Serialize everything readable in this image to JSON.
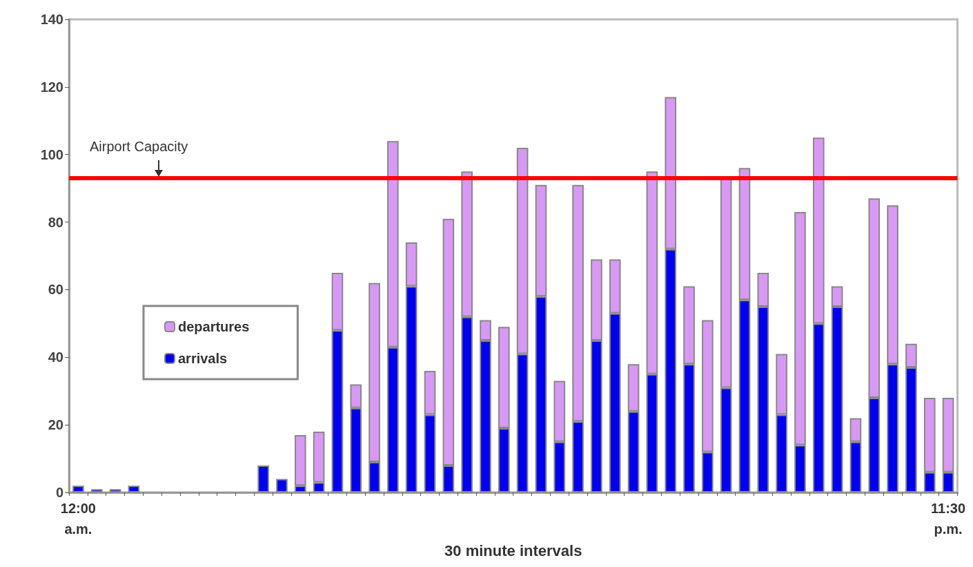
{
  "chart_data": {
    "type": "bar",
    "stacked": true,
    "xlabel": "30 minute intervals",
    "categories": [
      "12:00\na.m.",
      null,
      null,
      null,
      null,
      null,
      null,
      null,
      null,
      null,
      null,
      null,
      null,
      null,
      null,
      null,
      null,
      null,
      null,
      null,
      null,
      null,
      null,
      null,
      null,
      null,
      null,
      null,
      null,
      null,
      null,
      null,
      null,
      null,
      null,
      null,
      null,
      null,
      null,
      null,
      null,
      null,
      null,
      null,
      null,
      null,
      null,
      "11:30\np.m."
    ],
    "series": [
      {
        "name": "arrivals",
        "color": "#0000ee",
        "values": [
          2,
          1,
          1,
          2,
          0,
          0,
          0,
          0,
          0,
          0,
          8,
          4,
          2,
          3,
          48,
          25,
          9,
          43,
          61,
          23,
          8,
          52,
          45,
          19,
          41,
          58,
          15,
          21,
          45,
          53,
          24,
          35,
          72,
          38,
          12,
          31,
          57,
          55,
          23,
          14,
          50,
          55,
          15,
          28,
          38,
          37,
          6,
          6
        ]
      },
      {
        "name": "departures",
        "color": "#d899f5",
        "values": [
          0,
          0,
          0,
          0,
          0,
          0,
          0,
          0,
          0,
          0,
          0,
          0,
          15,
          15,
          17,
          7,
          53,
          61,
          13,
          13,
          73,
          43,
          6,
          30,
          61,
          33,
          18,
          70,
          24,
          16,
          14,
          60,
          45,
          23,
          39,
          62,
          39,
          10,
          18,
          69,
          55,
          6,
          7,
          59,
          47,
          7,
          22,
          22
        ]
      }
    ],
    "ylim": [
      0,
      140
    ],
    "yticks": [
      0,
      20,
      40,
      60,
      80,
      100,
      120,
      140
    ],
    "grid": false,
    "legend": "left",
    "ref_lines": [
      {
        "axis": "y",
        "value": 93,
        "label": "Airport Capacity",
        "color": "#ff0000"
      }
    ]
  }
}
